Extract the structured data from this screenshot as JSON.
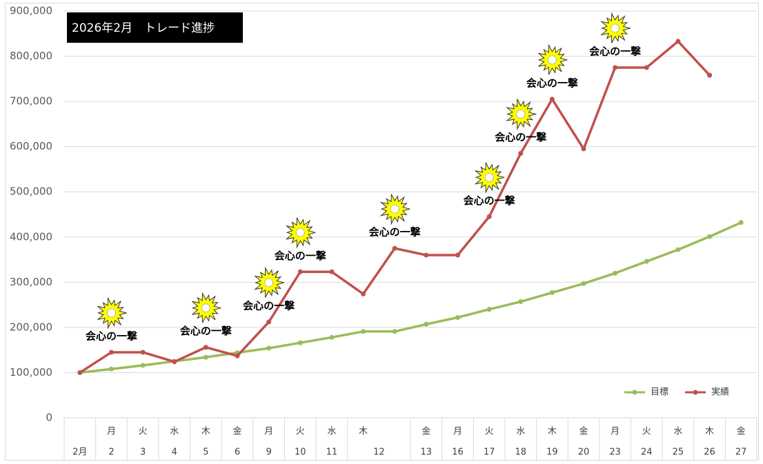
{
  "chart_data": {
    "type": "line",
    "title": "2026年2月　トレード進捗",
    "categories": [
      "2月",
      "2",
      "3",
      "4",
      "5",
      "6",
      "9",
      "10",
      "11",
      "12",
      null,
      "13",
      "16",
      "17",
      "18",
      "19",
      "20",
      "23",
      "24",
      "25",
      "26",
      "27"
    ],
    "weekdays": [
      null,
      "月",
      "火",
      "水",
      "木",
      "金",
      "月",
      "火",
      "水",
      "木",
      null,
      "金",
      "月",
      "火",
      "水",
      "木",
      "金",
      "月",
      "火",
      "水",
      "木",
      "金"
    ],
    "series": [
      {
        "name": "目標",
        "color": "#9bbb59",
        "values": [
          100000,
          108000,
          116000,
          125000,
          134000,
          144000,
          154000,
          166000,
          178000,
          191000,
          191000,
          207000,
          222000,
          240000,
          257000,
          277000,
          297000,
          320000,
          346000,
          372000,
          401000,
          432000
        ]
      },
      {
        "name": "実績",
        "color": "#c0504d",
        "values": [
          100000,
          145000,
          145000,
          124000,
          156000,
          137000,
          212000,
          323000,
          323000,
          274000,
          375000,
          360000,
          360000,
          445000,
          585000,
          705000,
          595000,
          775000,
          775000,
          833000,
          758000,
          null
        ]
      }
    ],
    "annotations": [
      {
        "index": 1,
        "text": "会心の一撃"
      },
      {
        "index": 4,
        "text": "会心の一撃"
      },
      {
        "index": 6,
        "text": "会心の一撃"
      },
      {
        "index": 7,
        "text": "会心の一撃"
      },
      {
        "index": 10,
        "text": "会心の一撃"
      },
      {
        "index": 13,
        "text": "会心の一撃"
      },
      {
        "index": 14,
        "text": "会心の一撃"
      },
      {
        "index": 15,
        "text": "会心の一撃"
      },
      {
        "index": 17,
        "text": "会心の一撃"
      }
    ],
    "ylim": [
      0,
      900000
    ],
    "yticks": [
      0,
      {
        "value": 100000,
        "label": "100,000"
      },
      {
        "value": 200000,
        "label": "200,000"
      },
      {
        "value": 300000,
        "label": "300,000"
      },
      {
        "value": 400000,
        "label": "400,000"
      },
      {
        "value": 500000,
        "label": "500,000"
      },
      {
        "value": 600000,
        "label": "600,000"
      },
      {
        "value": 700000,
        "label": "700,000"
      },
      {
        "value": 800000,
        "label": "800,000"
      },
      {
        "value": 900000,
        "label": "900,000"
      }
    ],
    "grid": true,
    "legend": "bottom-right"
  }
}
